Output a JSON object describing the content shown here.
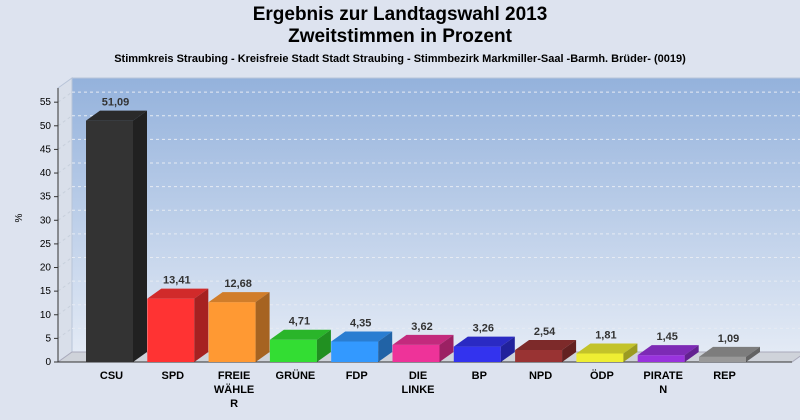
{
  "chart_data": {
    "type": "bar",
    "title_lines": [
      "Ergebnis zur Landtagswahl 2013",
      "Zweitstimmen in Prozent"
    ],
    "subtitle": "Stimmkreis Straubing - Kreisfreie Stadt Stadt Straubing - Stimmbezirk Markmiller-Saal -Barmh. Brüder- (0019)",
    "ylabel": "%",
    "ylim": [
      0,
      58
    ],
    "yticks": [
      0,
      5,
      10,
      15,
      20,
      25,
      30,
      35,
      40,
      45,
      50,
      55
    ],
    "grid": true,
    "categories": [
      [
        "CSU"
      ],
      [
        "SPD"
      ],
      [
        "FREIE",
        "WÄHLE",
        "R"
      ],
      [
        "GRÜNE"
      ],
      [
        "FDP"
      ],
      [
        "DIE",
        "LINKE"
      ],
      [
        "BP"
      ],
      [
        "NPD"
      ],
      [
        "ÖDP"
      ],
      [
        "PIRATE",
        "N"
      ],
      [
        "REP"
      ]
    ],
    "values": [
      51.09,
      13.41,
      12.68,
      4.71,
      4.35,
      3.62,
      3.26,
      2.54,
      1.81,
      1.45,
      1.09
    ],
    "value_labels": [
      "51,09",
      "13,41",
      "12,68",
      "4,71",
      "4,35",
      "3,62",
      "3,26",
      "2,54",
      "1,81",
      "1,45",
      "1,09"
    ],
    "colors": [
      "#333333",
      "#ff3333",
      "#ff9933",
      "#33dd33",
      "#3399ff",
      "#ee3399",
      "#3333ee",
      "#993333",
      "#eeee33",
      "#9933dd",
      "#999999"
    ]
  }
}
